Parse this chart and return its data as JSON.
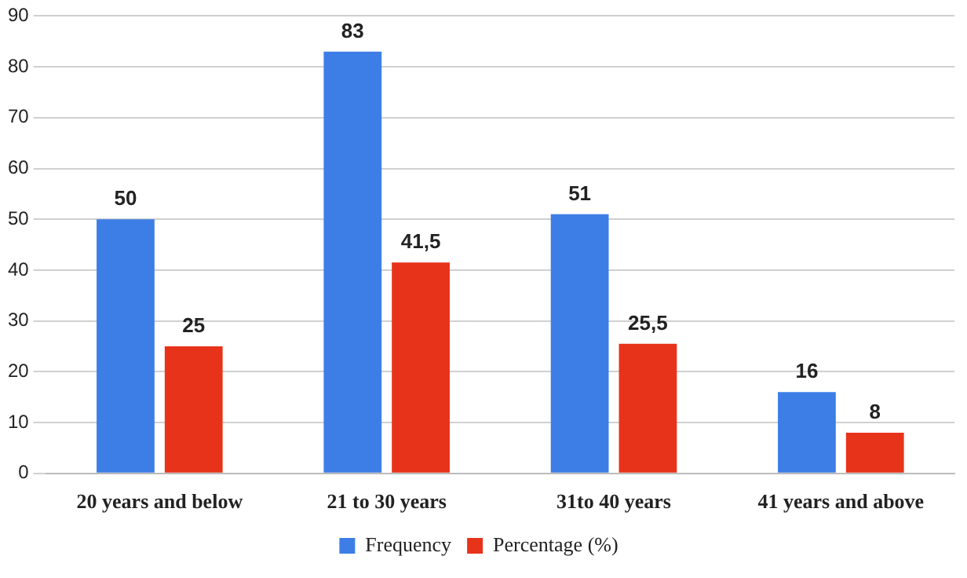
{
  "chart_data": {
    "type": "bar",
    "categories": [
      "20 years and below",
      "21 to 30 years",
      "31to 40 years",
      "41 years and above"
    ],
    "series": [
      {
        "name": "Frequency",
        "color": "#3d7ee6",
        "values": [
          50,
          83,
          51,
          16
        ],
        "value_labels": [
          "50",
          "83",
          "51",
          "16"
        ]
      },
      {
        "name": "Percentage (%)",
        "color": "#e8331b",
        "values": [
          25,
          41.5,
          25.5,
          8
        ],
        "value_labels": [
          "25",
          "41,5",
          "25,5",
          "8"
        ]
      }
    ],
    "ylim": [
      0,
      90
    ],
    "yticks": [
      0,
      10,
      20,
      30,
      40,
      50,
      60,
      70,
      80,
      90
    ],
    "grid": "y",
    "legend": "bottom"
  }
}
